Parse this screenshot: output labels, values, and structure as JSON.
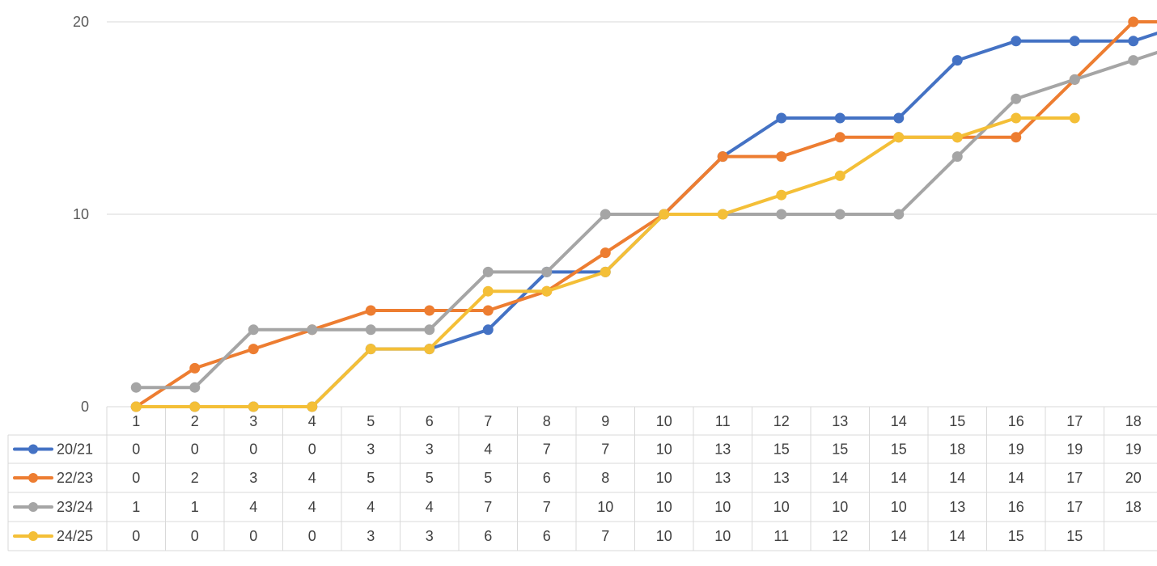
{
  "chart_data": {
    "type": "line",
    "title": "",
    "xlabel": "",
    "ylabel": "",
    "categories": [
      "1",
      "2",
      "3",
      "4",
      "5",
      "6",
      "7",
      "8",
      "9",
      "10",
      "11",
      "12",
      "13",
      "14",
      "15",
      "16",
      "17",
      "18"
    ],
    "ylim": [
      0,
      20
    ],
    "yticks": [
      "0",
      "10",
      "20"
    ],
    "grid": true,
    "legend": "data-table",
    "series": [
      {
        "name": "20/21",
        "color": "#4472C4",
        "values": [
          0,
          0,
          0,
          0,
          3,
          3,
          4,
          7,
          7,
          10,
          13,
          15,
          15,
          15,
          18,
          19,
          19,
          19
        ],
        "next_value": 20
      },
      {
        "name": "22/23",
        "color": "#ED7D31",
        "values": [
          0,
          2,
          3,
          4,
          5,
          5,
          5,
          6,
          8,
          10,
          13,
          13,
          14,
          14,
          14,
          14,
          17,
          20
        ],
        "next_value": 20
      },
      {
        "name": "23/24",
        "color": "#A5A5A5",
        "values": [
          1,
          1,
          4,
          4,
          4,
          4,
          7,
          7,
          10,
          10,
          10,
          10,
          10,
          10,
          13,
          16,
          17,
          18
        ],
        "next_value": 19
      },
      {
        "name": "24/25",
        "color": "#F4BF37",
        "values": [
          0,
          0,
          0,
          0,
          3,
          3,
          6,
          6,
          7,
          10,
          10,
          11,
          12,
          14,
          14,
          15,
          15,
          null
        ],
        "next_value": null
      }
    ]
  }
}
